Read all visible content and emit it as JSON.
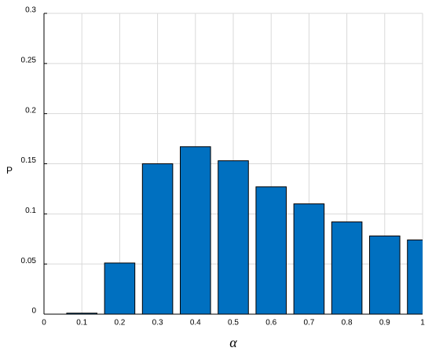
{
  "chart_data": {
    "type": "bar",
    "x_label": "α",
    "y_label": "P",
    "x": [
      0.1,
      0.2,
      0.3,
      0.4,
      0.5,
      0.6,
      0.7,
      0.8,
      0.9,
      1
    ],
    "values": [
      0.001,
      0.051,
      0.15,
      0.167,
      0.153,
      0.127,
      0.11,
      0.092,
      0.078,
      0.074
    ],
    "color": "#0070c0",
    "xlim": [
      0,
      1
    ],
    "xticks": [
      0,
      0.1,
      0.2,
      0.3,
      0.4,
      0.5,
      0.6,
      0.7,
      0.8,
      0.9,
      1
    ],
    "ylim": [
      0,
      0.3
    ],
    "yticks": [
      0,
      0.05,
      0.1,
      0.15,
      0.2,
      0.25,
      0.3
    ],
    "grid": true
  }
}
